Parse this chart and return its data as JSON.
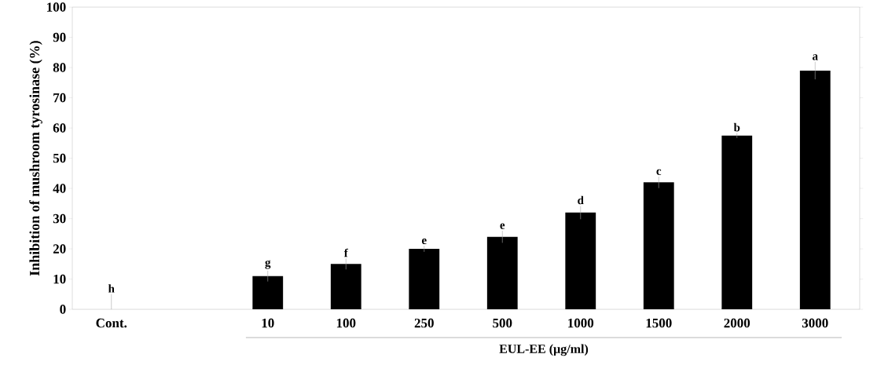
{
  "chart_data": {
    "type": "bar",
    "ylabel": "Inhibition of mushroom tyrosinase (%)",
    "xlabel": "EUL-EE (µg/ml)",
    "categories": [
      "Cont.",
      null,
      "10",
      "100",
      "250",
      "500",
      "1000",
      "1500",
      "2000",
      "3000"
    ],
    "values": [
      0,
      null,
      11,
      15,
      20,
      24,
      32,
      42,
      57.5,
      79
    ],
    "errors": [
      [
        0,
        5
      ],
      null,
      1.8,
      1.8,
      1,
      2,
      2.2,
      1.9,
      0.8,
      2.9
    ],
    "color": "#000000",
    "ylim": [
      0,
      100
    ],
    "yticks": [
      0,
      10,
      20,
      30,
      40,
      50,
      60,
      70,
      80,
      90,
      100
    ],
    "annotations": [
      {
        "text": "h",
        "x": "Cont.",
        "y": 0
      },
      {
        "text": "g",
        "x": "10",
        "y": 11
      },
      {
        "text": "f",
        "x": "100",
        "y": 15
      },
      {
        "text": "e",
        "x": "250",
        "y": 20
      },
      {
        "text": "e",
        "x": "500",
        "y": 24
      },
      {
        "text": "d",
        "x": "1000",
        "y": 32
      },
      {
        "text": "c",
        "x": "1500",
        "y": 42
      },
      {
        "text": "b",
        "x": "2000",
        "y": 57.5
      },
      {
        "text": "a",
        "x": "3000",
        "y": 79
      }
    ]
  }
}
